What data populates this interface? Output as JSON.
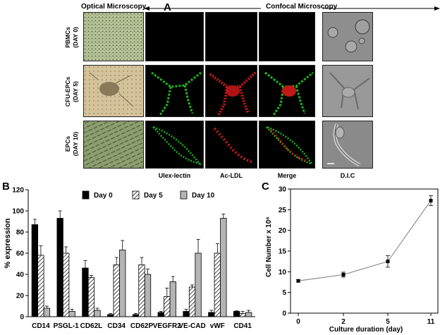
{
  "panel_a": {
    "letter": "A",
    "optical_header": "Optical Microscopy",
    "confocal_header": "Confocal Microscopy",
    "rows": [
      {
        "line1": "PBMCs",
        "line2": "(DAY 0)"
      },
      {
        "line1": "CFU-EPCs",
        "line2": "(DAY 5)"
      },
      {
        "line1": "EPCs",
        "line2": "(DAY 10)"
      }
    ],
    "columns": [
      "Ulex-lectin",
      "Ac-LDL",
      "Merge",
      "D.I.C"
    ]
  },
  "panel_b": {
    "letter": "B"
  },
  "panel_c": {
    "letter": "C"
  },
  "chart_data": [
    {
      "type": "bar",
      "panel": "B",
      "ylabel": "% expression",
      "ylim": [
        0,
        120
      ],
      "yticks": [
        0,
        20,
        40,
        60,
        80,
        100,
        120
      ],
      "categories": [
        "CD14",
        "PSGL-1",
        "CD62L",
        "CD34",
        "CD62P",
        "VEGFR2",
        "VE-CAD",
        "vWF",
        "CD41"
      ],
      "series": [
        {
          "name": "Day 0",
          "color": "#000000",
          "values": [
            87,
            93,
            46,
            2,
            2,
            4,
            5,
            4,
            5
          ],
          "errors": [
            5,
            7,
            7,
            1,
            1,
            1,
            2,
            2,
            0.5
          ]
        },
        {
          "name": "Day 5",
          "color": "#ffffff",
          "values": [
            58,
            60,
            37,
            49,
            49,
            19,
            28,
            60,
            3
          ],
          "errors": [
            9,
            6,
            2,
            7,
            7,
            8,
            2,
            9,
            2
          ]
        },
        {
          "name": "Day 10",
          "color": "#b4b4b4",
          "values": [
            8,
            5,
            6,
            63,
            40,
            33,
            60,
            93,
            4
          ],
          "errors": [
            2,
            2,
            2,
            9,
            5,
            5,
            13,
            4,
            2
          ]
        }
      ],
      "legend": "top-right"
    },
    {
      "type": "line",
      "panel": "C",
      "xlabel": "Culture duration (day)",
      "ylabel": "Cell Number x 10⁶",
      "x_labels": [
        "0",
        "2",
        "5",
        "11"
      ],
      "y": [
        7.8,
        9.3,
        12.5,
        27.2
      ],
      "errors": [
        0.3,
        0.6,
        1.4,
        1.2
      ],
      "ylim": [
        0,
        30
      ],
      "yticks": [
        0,
        5,
        10,
        15,
        20,
        25,
        30
      ]
    }
  ]
}
